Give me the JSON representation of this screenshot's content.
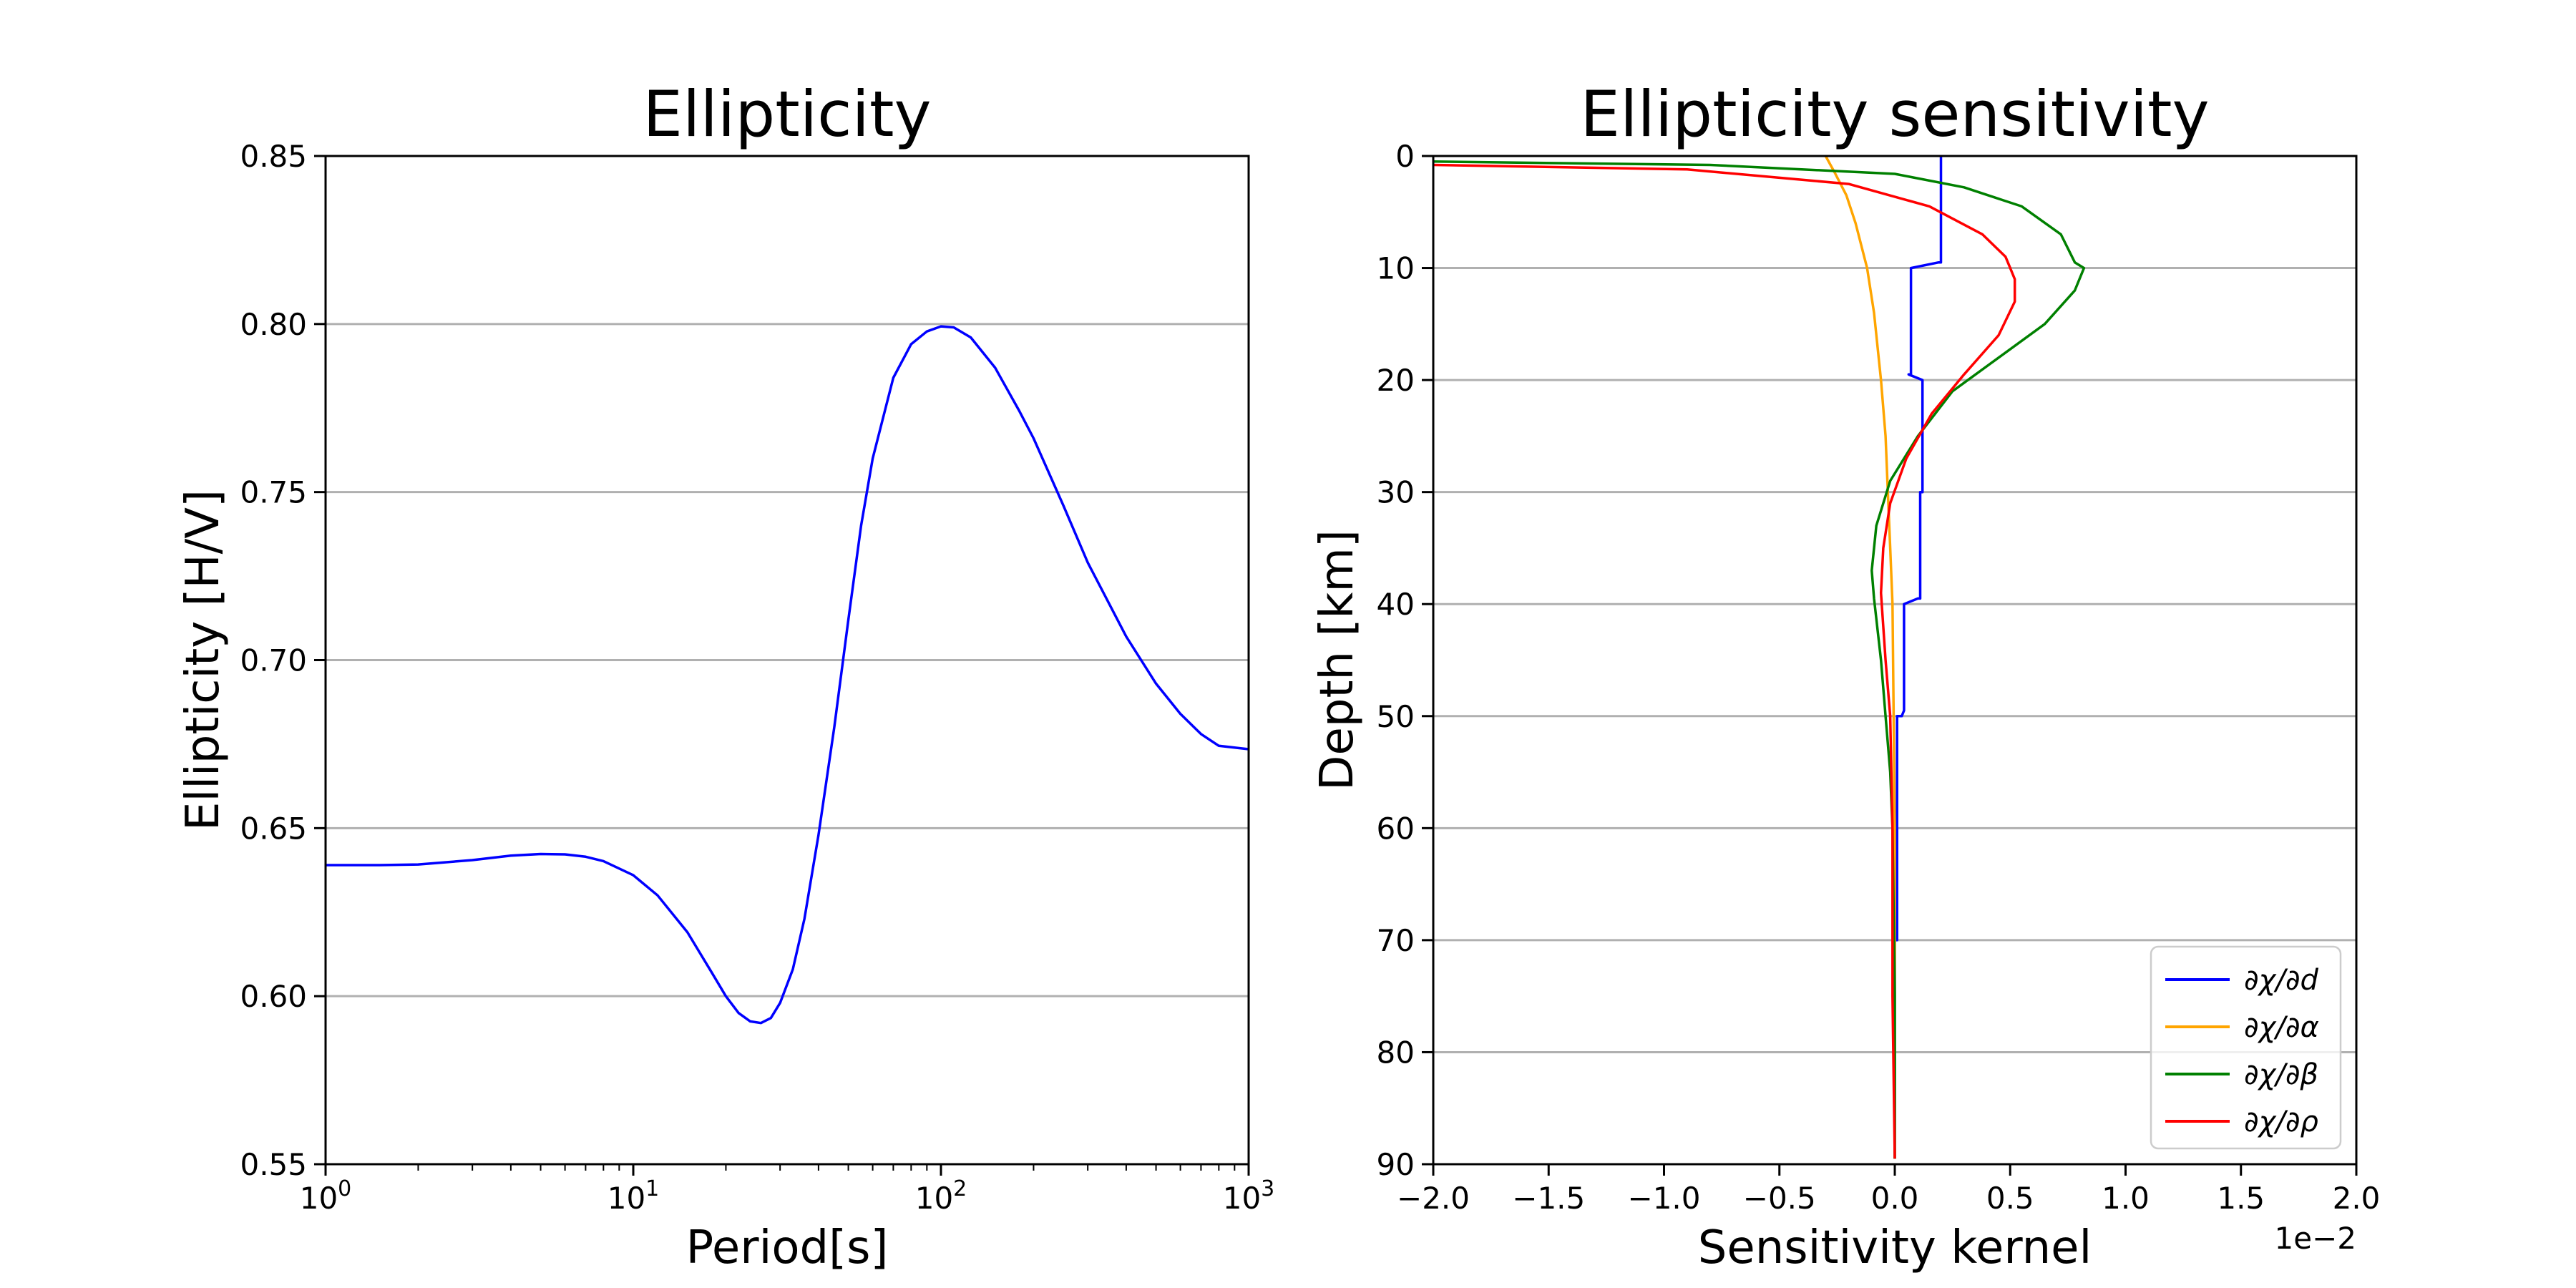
{
  "chart_data": [
    {
      "type": "line",
      "title": "Ellipticity",
      "xlabel": "Period[s]",
      "ylabel": "Ellipticity [H/V]",
      "xscale": "log",
      "xlim": [
        1,
        1000
      ],
      "ylim": [
        0.55,
        0.85
      ],
      "grid": "y",
      "xticks": [
        {
          "value": 1,
          "base": "10",
          "exp": "0"
        },
        {
          "value": 10,
          "base": "10",
          "exp": "1"
        },
        {
          "value": 100,
          "base": "10",
          "exp": "2"
        },
        {
          "value": 1000,
          "base": "10",
          "exp": "3"
        }
      ],
      "yticks": [
        {
          "value": 0.55,
          "label": "0.55"
        },
        {
          "value": 0.6,
          "label": "0.60"
        },
        {
          "value": 0.65,
          "label": "0.65"
        },
        {
          "value": 0.7,
          "label": "0.70"
        },
        {
          "value": 0.75,
          "label": "0.75"
        },
        {
          "value": 0.8,
          "label": "0.80"
        },
        {
          "value": 0.85,
          "label": "0.85"
        }
      ],
      "series": [
        {
          "name": "ellipticity",
          "color": "#0000ff",
          "x": [
            1,
            1.5,
            2,
            3,
            4,
            5,
            6,
            7,
            8,
            10,
            12,
            15,
            18,
            20,
            22,
            24,
            26,
            28,
            30,
            33,
            36,
            40,
            45,
            50,
            55,
            60,
            70,
            80,
            90,
            100,
            110,
            125,
            150,
            180,
            200,
            250,
            300,
            400,
            500,
            600,
            700,
            800,
            1000
          ],
          "y": [
            0.639,
            0.639,
            0.6392,
            0.6405,
            0.6418,
            0.6423,
            0.6422,
            0.6415,
            0.6402,
            0.636,
            0.63,
            0.619,
            0.607,
            0.6,
            0.595,
            0.5925,
            0.592,
            0.5935,
            0.598,
            0.608,
            0.623,
            0.648,
            0.68,
            0.712,
            0.74,
            0.76,
            0.784,
            0.794,
            0.7978,
            0.7993,
            0.799,
            0.796,
            0.787,
            0.774,
            0.766,
            0.746,
            0.729,
            0.707,
            0.693,
            0.684,
            0.678,
            0.6745,
            0.6735
          ]
        }
      ]
    },
    {
      "type": "line",
      "title": "Ellipticity sensitivity",
      "xlabel": "Sensitivity kernel",
      "ylabel": "Depth [km]",
      "offset_label": "1e−2",
      "xlim": [
        -2.0,
        2.0
      ],
      "ylim": [
        90,
        0
      ],
      "grid": "y",
      "legend_position": "lower-right",
      "xticks": [
        {
          "value": -2.0,
          "label": "−2.0"
        },
        {
          "value": -1.5,
          "label": "−1.5"
        },
        {
          "value": -1.0,
          "label": "−1.0"
        },
        {
          "value": -0.5,
          "label": "−0.5"
        },
        {
          "value": 0.0,
          "label": "0.0"
        },
        {
          "value": 0.5,
          "label": "0.5"
        },
        {
          "value": 1.0,
          "label": "1.0"
        },
        {
          "value": 1.5,
          "label": "1.5"
        },
        {
          "value": 2.0,
          "label": "2.0"
        }
      ],
      "yticks": [
        {
          "value": 0,
          "label": "0"
        },
        {
          "value": 10,
          "label": "10"
        },
        {
          "value": 20,
          "label": "20"
        },
        {
          "value": 30,
          "label": "30"
        },
        {
          "value": 40,
          "label": "40"
        },
        {
          "value": 50,
          "label": "50"
        },
        {
          "value": 60,
          "label": "60"
        },
        {
          "value": 70,
          "label": "70"
        },
        {
          "value": 80,
          "label": "80"
        },
        {
          "value": 90,
          "label": "90"
        }
      ],
      "series": [
        {
          "name": "∂χ/∂d",
          "color": "#0000ff",
          "x": [
            0.2,
            0.2,
            0.19,
            0.07,
            0.07,
            0.06,
            0.12,
            0.12,
            0.12,
            0.11,
            0.11,
            0.1,
            0.04,
            0.04,
            0.03,
            0.01,
            0.01,
            0.01,
            0.0,
            0.0,
            0.0,
            0.0
          ],
          "y": [
            0,
            9.5,
            9.5,
            10,
            19.5,
            19.5,
            20,
            29.5,
            30,
            30,
            39.5,
            39.5,
            40,
            49.5,
            50,
            50,
            60,
            70,
            70,
            80,
            85,
            89.5
          ]
        },
        {
          "name": "∂χ/∂α",
          "color": "#ffa500",
          "x": [
            -0.3,
            -0.26,
            -0.21,
            -0.17,
            -0.12,
            -0.09,
            -0.06,
            -0.04,
            -0.03,
            -0.02,
            -0.01,
            -0.005,
            0.0,
            0.0,
            0.0,
            0.0
          ],
          "y": [
            0,
            1.5,
            3.5,
            6,
            10,
            14,
            20,
            25,
            30,
            35,
            40,
            50,
            60,
            70,
            80,
            89.5
          ]
        },
        {
          "name": "∂χ/∂β",
          "color": "#008000",
          "x": [
            -2.0,
            -0.8,
            0.0,
            0.3,
            0.55,
            0.72,
            0.78,
            0.82,
            0.78,
            0.65,
            0.45,
            0.25,
            0.1,
            -0.02,
            -0.08,
            -0.1,
            -0.09,
            -0.06,
            -0.04,
            -0.02,
            -0.01,
            0.0,
            0.0
          ],
          "y": [
            0.5,
            0.8,
            1.6,
            2.8,
            4.5,
            7,
            9.5,
            10,
            12,
            15,
            18,
            21,
            25,
            29,
            33,
            37,
            39.5,
            45,
            50,
            55,
            60,
            75,
            89.5
          ]
        },
        {
          "name": "∂χ/∂ρ",
          "color": "#ff0000",
          "x": [
            -2.0,
            -0.9,
            -0.2,
            0.15,
            0.38,
            0.48,
            0.5,
            0.52,
            0.52,
            0.45,
            0.3,
            0.16,
            0.05,
            -0.02,
            -0.05,
            -0.06,
            -0.04,
            -0.02,
            -0.01,
            -0.01,
            0.0
          ],
          "y": [
            0.8,
            1.2,
            2.5,
            4.5,
            7,
            9,
            10,
            11,
            13,
            16,
            19.5,
            23,
            27,
            31,
            35,
            39,
            45,
            50,
            60,
            75,
            89.5
          ]
        }
      ]
    }
  ]
}
